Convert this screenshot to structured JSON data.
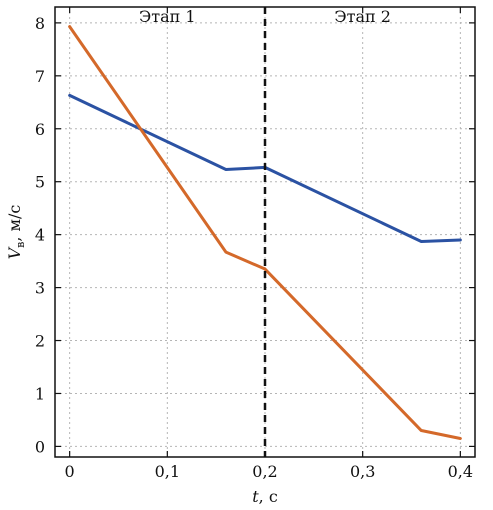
{
  "chart_data": {
    "type": "line",
    "xlabel": "t, c",
    "ylabel": "V",
    "ylabel_subscript": "в",
    "ylabel_unit": ", м/с",
    "xlim": [
      -0.015,
      0.415
    ],
    "ylim": [
      -0.2,
      8.3
    ],
    "x_ticks": [
      {
        "value": 0,
        "label": "0"
      },
      {
        "value": 0.1,
        "label": "0,1"
      },
      {
        "value": 0.2,
        "label": "0,2"
      },
      {
        "value": 0.3,
        "label": "0,3"
      },
      {
        "value": 0.4,
        "label": "0,4"
      }
    ],
    "y_ticks": [
      {
        "value": 0,
        "label": "0"
      },
      {
        "value": 1,
        "label": "1"
      },
      {
        "value": 2,
        "label": "2"
      },
      {
        "value": 3,
        "label": "3"
      },
      {
        "value": 4,
        "label": "4"
      },
      {
        "value": 5,
        "label": "5"
      },
      {
        "value": 6,
        "label": "6"
      },
      {
        "value": 7,
        "label": "7"
      },
      {
        "value": 8,
        "label": "8"
      }
    ],
    "grid": true,
    "divider_x": 0.2,
    "stages": [
      {
        "label": "Этап 1",
        "x": 0.1
      },
      {
        "label": "Этап 2",
        "x": 0.3
      }
    ],
    "series": [
      {
        "color": "#2b52a3",
        "points": [
          [
            0,
            6.63
          ],
          [
            0.16,
            5.23
          ],
          [
            0.2,
            5.27
          ],
          [
            0.36,
            3.87
          ],
          [
            0.4,
            3.9
          ]
        ]
      },
      {
        "color": "#d4692a",
        "points": [
          [
            0,
            7.93
          ],
          [
            0.16,
            3.67
          ],
          [
            0.2,
            3.35
          ],
          [
            0.36,
            0.3
          ],
          [
            0.4,
            0.15
          ]
        ]
      }
    ]
  }
}
